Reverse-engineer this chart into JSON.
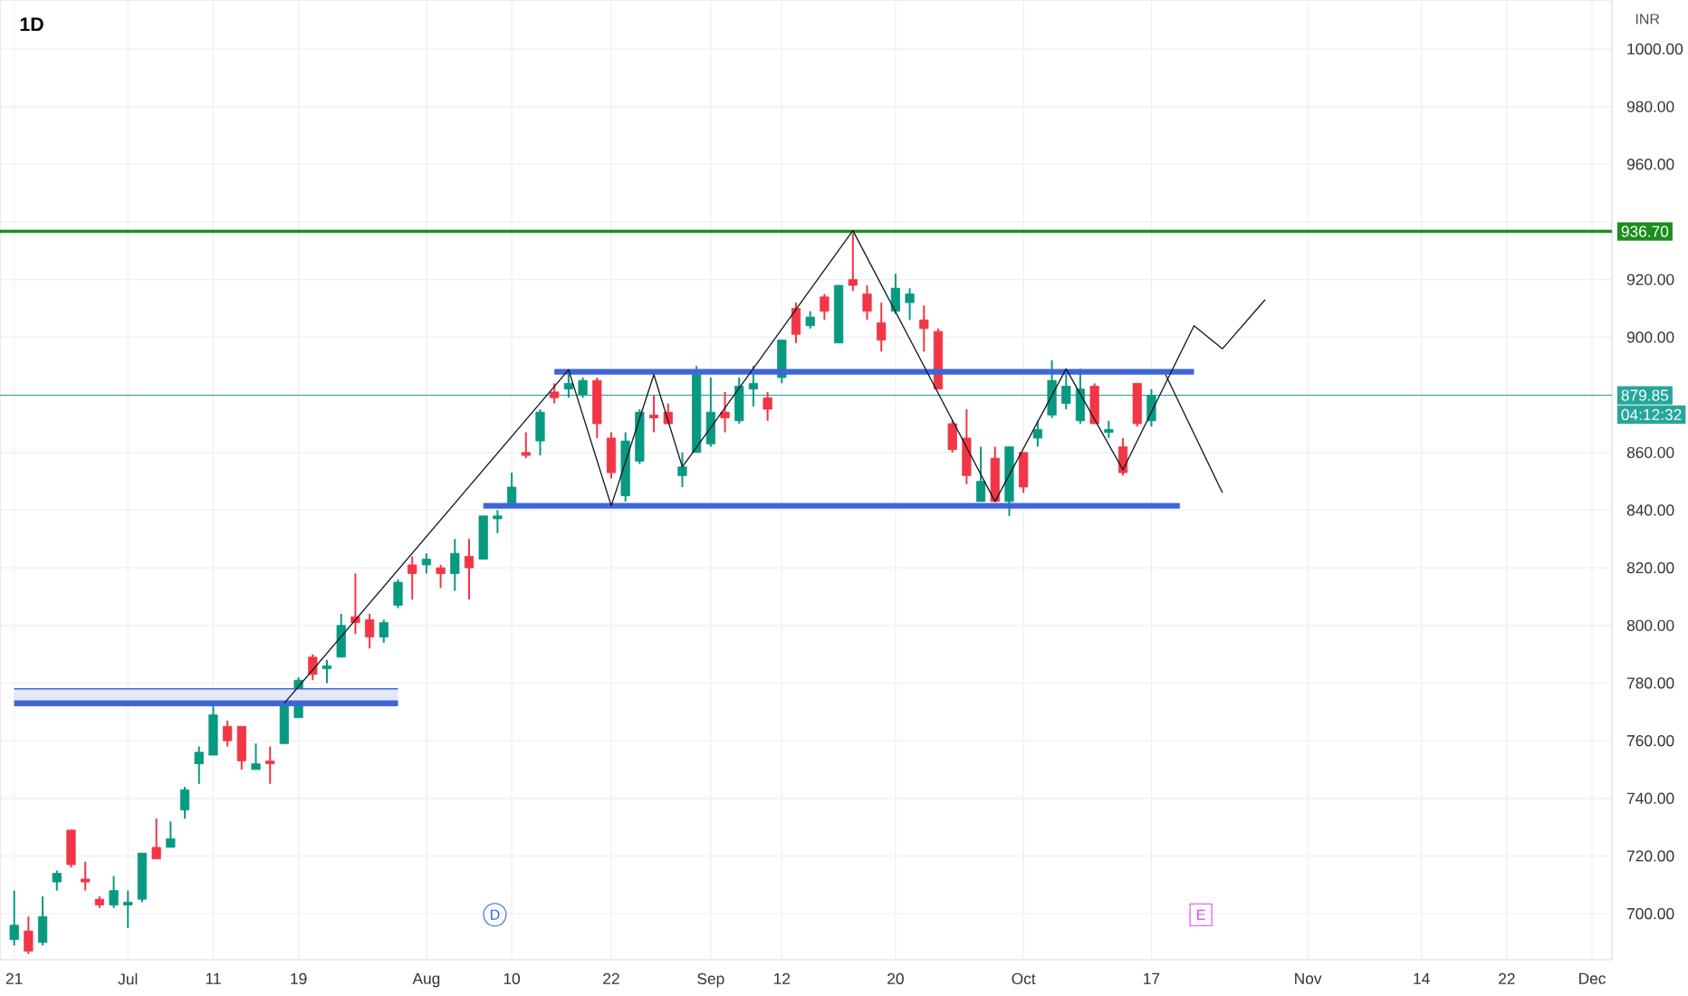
{
  "chart_data": {
    "type": "candlestick",
    "title": "1D",
    "ylabel": "INR",
    "categories": [
      "21",
      null,
      null,
      null,
      null,
      null,
      null,
      null,
      "Jul",
      null,
      null,
      null,
      null,
      null,
      "11",
      null,
      null,
      null,
      null,
      null,
      "19",
      null,
      null,
      null,
      null,
      null,
      null,
      null,
      null,
      "Aug",
      null,
      null,
      null,
      null,
      null,
      "10",
      null,
      null,
      null,
      null,
      null,
      null,
      "22",
      null,
      null,
      null,
      null,
      null,
      null,
      "Sep",
      null,
      null,
      null,
      null,
      "12",
      null,
      null,
      null,
      null,
      null,
      null,
      null,
      "20",
      null,
      null,
      null,
      null,
      null,
      null,
      null,
      null,
      "Oct",
      null,
      null,
      null,
      null,
      null,
      null,
      null,
      null,
      "17",
      null,
      null,
      null,
      null,
      null,
      null,
      null,
      null,
      null,
      null,
      "Nov",
      null,
      null,
      null,
      null,
      null,
      null,
      null,
      "14",
      null,
      null,
      null,
      null,
      null,
      "22",
      null,
      null,
      null,
      null,
      null,
      "Dec"
    ],
    "ohlc": [
      [
        691,
        708,
        689,
        696
      ],
      [
        694,
        699,
        686,
        687
      ],
      [
        690,
        706,
        689,
        699
      ],
      [
        711,
        715,
        708,
        714
      ],
      [
        729,
        729,
        716,
        717
      ],
      [
        712,
        718,
        708,
        711
      ],
      [
        705,
        706,
        702,
        703
      ],
      [
        703,
        713,
        702,
        708
      ],
      [
        703,
        708,
        695,
        704
      ],
      [
        705,
        721,
        704,
        721
      ],
      [
        723,
        733,
        719,
        719
      ],
      [
        723,
        732,
        723,
        726
      ],
      [
        736,
        744,
        733,
        743
      ],
      [
        752,
        758,
        745,
        756
      ],
      [
        755,
        772,
        755,
        769
      ],
      [
        765,
        767,
        758,
        760
      ],
      [
        765,
        765,
        750,
        753
      ],
      [
        750,
        759,
        750,
        752
      ],
      [
        753,
        758,
        745,
        752
      ],
      [
        759,
        773,
        759,
        772
      ],
      [
        768,
        782,
        768,
        781
      ],
      [
        789,
        790,
        781,
        783
      ],
      [
        785,
        788,
        780,
        786
      ],
      [
        789,
        804,
        789,
        800
      ],
      [
        803,
        818,
        797,
        801
      ],
      [
        802,
        804,
        792,
        796
      ],
      [
        796,
        802,
        794,
        801
      ],
      [
        807,
        816,
        806,
        815
      ],
      [
        821,
        824,
        809,
        818
      ],
      [
        821,
        825,
        818,
        823
      ],
      [
        820,
        821,
        813,
        818
      ],
      [
        818,
        830,
        812,
        825
      ],
      [
        824,
        830,
        809,
        820
      ],
      [
        823,
        838,
        823,
        838
      ],
      [
        837,
        840,
        832,
        838
      ],
      [
        842,
        853,
        842,
        848
      ],
      [
        860,
        867,
        858,
        859
      ],
      [
        864,
        875,
        859,
        874
      ],
      [
        881,
        884,
        877,
        879
      ],
      [
        882,
        887,
        879,
        884
      ],
      [
        880,
        886,
        879,
        885
      ],
      [
        885,
        886,
        865,
        870
      ],
      [
        865,
        867,
        851,
        853
      ],
      [
        845,
        867,
        843,
        864
      ],
      [
        857,
        875,
        856,
        874
      ],
      [
        873,
        880,
        867,
        872
      ],
      [
        874,
        877,
        870,
        870
      ],
      [
        852,
        860,
        848,
        855
      ],
      [
        860,
        890,
        860,
        887
      ],
      [
        863,
        886,
        862,
        874
      ],
      [
        874,
        881,
        867,
        872
      ],
      [
        871,
        886,
        870,
        883
      ],
      [
        882,
        890,
        876,
        884
      ],
      [
        879,
        881,
        871,
        875
      ],
      [
        886,
        899,
        884,
        899
      ],
      [
        910,
        912,
        898,
        901
      ],
      [
        904,
        909,
        903,
        907
      ],
      [
        914,
        915,
        906,
        909
      ],
      [
        898,
        918,
        898,
        918
      ],
      [
        920,
        936,
        916,
        918
      ],
      [
        915,
        918,
        906,
        909
      ],
      [
        905,
        912,
        895,
        899
      ],
      [
        909,
        922,
        908,
        917
      ],
      [
        912,
        917,
        906,
        915
      ],
      [
        906,
        911,
        895,
        903
      ],
      [
        902,
        903,
        882,
        882
      ],
      [
        870,
        871,
        860,
        861
      ],
      [
        865,
        875,
        849,
        852
      ],
      [
        843,
        862,
        843,
        850
      ],
      [
        858,
        862,
        843,
        843
      ],
      [
        843,
        862,
        838,
        862
      ],
      [
        860,
        860,
        846,
        848
      ],
      [
        865,
        871,
        862,
        868
      ],
      [
        873,
        892,
        872,
        885
      ],
      [
        877,
        887,
        875,
        883
      ],
      [
        871,
        889,
        870,
        882
      ],
      [
        883,
        884,
        870,
        870
      ],
      [
        867,
        871,
        865,
        868
      ],
      [
        862,
        865,
        852,
        853
      ],
      [
        884,
        884,
        869,
        870
      ],
      [
        871,
        882,
        869,
        879.85
      ],
      null,
      null,
      null,
      null,
      null,
      null,
      null,
      null,
      null,
      null,
      null,
      null,
      null,
      null,
      null,
      null,
      null,
      null,
      null,
      null,
      null,
      null,
      null,
      null,
      null,
      null,
      null,
      null,
      null,
      null,
      null
    ],
    "colors": [
      "#089981",
      "#f23645",
      "#089981",
      "#089981",
      "#f23645",
      "#f23645",
      "#f23645",
      "#089981",
      "#089981",
      "#089981",
      "#f23645",
      "#089981",
      "#089981",
      "#089981",
      "#089981",
      "#f23645",
      "#f23645",
      "#089981",
      "#f23645",
      "#089981",
      "#089981",
      "#f23645",
      "#089981",
      "#089981",
      "#f23645",
      "#f23645",
      "#089981",
      "#089981",
      "#f23645",
      "#089981",
      "#f23645",
      "#089981",
      "#f23645",
      "#089981",
      "#089981",
      "#089981",
      "#f23645",
      "#089981",
      "#f23645",
      "#089981",
      "#089981",
      "#f23645",
      "#f23645",
      "#089981",
      "#089981",
      "#f23645",
      "#f23645",
      "#089981",
      "#089981",
      "#089981",
      "#f23645",
      "#089981",
      "#089981",
      "#f23645",
      "#089981",
      "#f23645",
      "#089981",
      "#f23645",
      "#089981",
      "#f23645",
      "#f23645",
      "#f23645",
      "#089981",
      "#089981",
      "#f23645",
      "#f23645",
      "#f23645",
      "#f23645",
      "#089981",
      "#f23645",
      "#089981",
      "#f23645",
      "#089981",
      "#089981",
      "#089981",
      "#089981",
      "#f23645",
      "#089981",
      "#f23645",
      "#f23645",
      "#089981",
      null,
      null,
      null,
      null,
      null,
      null,
      null,
      null,
      null,
      null,
      null,
      null,
      null,
      null,
      null,
      null,
      null,
      null,
      null,
      null,
      null,
      null,
      null,
      null,
      null,
      null,
      null,
      null,
      null,
      null,
      null
    ],
    "series": [
      {
        "type": "line",
        "color": "#3f66d6",
        "values": [
          null,
          null,
          null,
          null,
          null,
          null,
          null,
          null,
          null,
          null,
          null,
          null,
          null,
          null,
          null,
          null,
          null,
          null,
          null,
          null,
          null,
          null,
          null,
          null,
          null,
          null,
          null,
          null,
          null,
          null,
          null,
          null,
          null,
          null,
          null,
          null,
          null,
          null,
          888,
          null,
          null,
          null,
          null,
          null,
          null,
          null,
          null,
          null,
          null,
          null,
          null,
          null,
          null,
          null,
          null,
          null,
          null,
          null,
          null,
          null,
          null,
          null,
          null,
          null,
          null,
          null,
          null,
          null,
          null,
          null,
          null,
          null,
          null,
          null,
          null,
          null,
          null,
          null,
          null,
          null,
          null,
          null,
          null,
          888,
          null,
          null,
          null,
          null,
          null,
          null,
          null,
          null,
          null,
          null,
          null,
          null,
          null,
          null,
          null,
          null,
          null,
          null,
          null,
          null,
          null,
          null,
          null,
          null,
          null,
          null,
          null,
          null
        ]
      },
      {
        "type": "line",
        "color": "#3f66d6",
        "values": [
          null,
          null,
          null,
          null,
          null,
          null,
          null,
          null,
          null,
          null,
          null,
          null,
          null,
          null,
          null,
          null,
          null,
          null,
          null,
          null,
          null,
          null,
          null,
          null,
          null,
          null,
          null,
          null,
          null,
          null,
          null,
          null,
          null,
          841.5,
          null,
          null,
          null,
          null,
          null,
          null,
          null,
          null,
          null,
          null,
          null,
          null,
          null,
          null,
          null,
          null,
          null,
          null,
          null,
          null,
          null,
          null,
          null,
          null,
          null,
          null,
          null,
          null,
          null,
          null,
          null,
          null,
          null,
          null,
          null,
          null,
          null,
          null,
          null,
          null,
          null,
          null,
          null,
          null,
          null,
          null,
          null,
          null,
          841.5,
          null,
          null,
          null,
          null,
          null,
          null,
          null,
          null,
          null,
          null,
          null,
          null,
          null,
          null,
          null,
          null,
          null,
          null,
          null,
          null,
          null,
          null,
          null,
          null,
          null,
          null,
          null,
          null,
          null
        ]
      },
      {
        "type": "line",
        "color": "#3f66d6",
        "values": [
          778,
          null,
          null,
          null,
          null,
          null,
          null,
          null,
          null,
          null,
          null,
          null,
          null,
          null,
          null,
          null,
          null,
          null,
          null,
          null,
          null,
          null,
          null,
          null,
          null,
          null,
          null,
          778,
          null,
          null,
          null,
          null,
          null,
          null,
          null,
          null,
          null,
          null,
          null,
          null,
          null,
          null,
          null,
          null,
          null,
          null,
          null,
          null,
          null,
          null,
          null,
          null,
          null,
          null,
          null,
          null,
          null,
          null,
          null,
          null,
          null,
          null,
          null,
          null,
          null,
          null,
          null,
          null,
          null,
          null,
          null,
          null,
          null,
          null,
          null,
          null,
          null,
          null,
          null,
          null,
          null,
          null,
          null,
          null,
          null,
          null,
          null,
          null,
          null,
          null,
          null,
          null,
          null,
          null,
          null,
          null,
          null,
          null,
          null,
          null,
          null,
          null,
          null,
          null,
          null,
          null,
          null,
          null,
          null,
          null,
          null,
          null
        ],
        "lower": [
          773,
          null,
          null,
          null,
          null,
          null,
          null,
          null,
          null,
          null,
          null,
          null,
          null,
          null,
          null,
          null,
          null,
          null,
          null,
          null,
          null,
          null,
          null,
          null,
          null,
          null,
          null,
          773,
          null,
          null,
          null,
          null,
          null,
          null,
          null,
          null,
          null,
          null,
          null,
          null,
          null,
          null,
          null,
          null,
          null,
          null,
          null,
          null,
          null,
          null,
          null,
          null,
          null,
          null,
          null,
          null,
          null,
          null,
          null,
          null,
          null,
          null,
          null,
          null,
          null,
          null,
          null,
          null,
          null,
          null,
          null,
          null,
          null,
          null,
          null,
          null,
          null,
          null,
          null,
          null,
          null,
          null,
          null,
          null,
          null,
          null,
          null,
          null,
          null,
          null,
          null,
          null,
          null,
          null,
          null,
          null,
          null,
          null,
          null,
          null,
          null,
          null,
          null,
          null,
          null,
          null,
          null,
          null,
          null,
          null,
          null,
          null
        ],
        "upper": [
          778,
          null,
          null,
          null,
          null,
          null,
          null,
          null,
          null,
          null,
          null,
          null,
          null,
          null,
          null,
          null,
          null,
          null,
          null,
          null,
          null,
          null,
          null,
          null,
          null,
          null,
          null,
          778,
          null,
          null,
          null,
          null,
          null,
          null,
          null,
          null,
          null,
          null,
          null,
          null,
          null,
          null,
          null,
          null,
          null,
          null,
          null,
          null,
          null,
          null,
          null,
          null,
          null,
          null,
          null,
          null,
          null,
          null,
          null,
          null,
          null,
          null,
          null,
          null,
          null,
          null,
          null,
          null,
          null,
          null,
          null,
          null,
          null,
          null,
          null,
          null,
          null,
          null,
          null,
          null,
          null,
          null,
          null,
          null,
          null,
          null,
          null,
          null,
          null,
          null,
          null,
          null,
          null,
          null,
          null,
          null,
          null,
          null,
          null,
          null,
          null,
          null,
          null,
          null,
          null,
          null,
          null,
          null,
          null,
          null,
          null,
          null
        ]
      },
      {
        "type": "line",
        "color": "#3f66d6",
        "values": [
          773,
          null,
          null,
          null,
          null,
          null,
          null,
          null,
          null,
          null,
          null,
          null,
          null,
          null,
          null,
          null,
          null,
          null,
          null,
          null,
          null,
          null,
          null,
          null,
          null,
          null,
          null,
          773,
          null,
          null,
          null,
          null,
          null,
          null,
          null,
          null,
          null,
          null,
          null,
          null,
          null,
          null,
          null,
          null,
          null,
          null,
          null,
          null,
          null,
          null,
          null,
          null,
          null,
          null,
          null,
          null,
          null,
          null,
          null,
          null,
          null,
          null,
          null,
          null,
          null,
          null,
          null,
          null,
          null,
          null,
          null,
          null,
          null,
          null,
          null,
          null,
          null,
          null,
          null,
          null,
          null,
          null,
          null,
          null,
          null,
          null,
          null,
          null,
          null,
          null,
          null,
          null,
          null,
          null,
          null,
          null,
          null,
          null,
          null,
          null,
          null,
          null,
          null,
          null,
          null,
          null,
          null,
          null,
          null,
          null,
          null,
          null
        ]
      },
      {
        "type": "line",
        "color": "#131722",
        "values": [
          null,
          null,
          null,
          null,
          null,
          null,
          null,
          null,
          null,
          null,
          null,
          null,
          null,
          null,
          null,
          null,
          null,
          null,
          null,
          773,
          null,
          null,
          null,
          null,
          null,
          null,
          null,
          null,
          null,
          null,
          null,
          null,
          null,
          null,
          null,
          null,
          null,
          null,
          null,
          888.7,
          null,
          null,
          841.5,
          null,
          null,
          887,
          null,
          855,
          null,
          null,
          null,
          null,
          null,
          null,
          null,
          null,
          null,
          null,
          null,
          937,
          null,
          null,
          null,
          null,
          null,
          null,
          null,
          null,
          null,
          843,
          null,
          null,
          null,
          null,
          889,
          null,
          null,
          null,
          854,
          null,
          null,
          null,
          null,
          904,
          null,
          896,
          null,
          null,
          913,
          null,
          null,
          null,
          null,
          null,
          null,
          null,
          null,
          null,
          null,
          null,
          null,
          null,
          null,
          null,
          null,
          null,
          null,
          null,
          null,
          null,
          null,
          null
        ]
      },
      {
        "type": "line",
        "color": "#131722",
        "values": [
          null,
          null,
          null,
          null,
          null,
          null,
          null,
          null,
          null,
          null,
          null,
          null,
          null,
          null,
          null,
          null,
          null,
          null,
          null,
          null,
          null,
          null,
          null,
          null,
          null,
          null,
          null,
          null,
          null,
          null,
          null,
          null,
          null,
          null,
          null,
          null,
          null,
          null,
          null,
          null,
          null,
          null,
          null,
          null,
          null,
          null,
          null,
          null,
          null,
          null,
          null,
          null,
          null,
          null,
          null,
          null,
          null,
          null,
          null,
          null,
          null,
          null,
          null,
          null,
          null,
          null,
          null,
          null,
          null,
          null,
          null,
          null,
          null,
          null,
          null,
          null,
          null,
          null,
          null,
          null,
          null,
          887,
          null,
          null,
          null,
          846,
          null,
          null,
          null,
          null,
          null,
          null,
          null,
          null,
          null,
          null,
          null,
          null,
          null,
          null,
          null,
          null,
          null,
          null,
          null,
          null,
          null,
          null,
          null,
          null,
          null,
          null
        ]
      }
    ],
    "ref_lines": [
      {
        "axis": "y",
        "value": 936.7,
        "label": "936.70",
        "color": "#1e8c1e"
      },
      {
        "axis": "y",
        "value": 879.85,
        "label": "879.85",
        "color": "#26a69a"
      }
    ],
    "annotations": [
      "04:12:32",
      "D",
      "E"
    ],
    "ylim": [
      684,
      1017
    ],
    "yticks": [
      {
        "value": 700,
        "label": "700.00"
      },
      {
        "value": 720,
        "label": "720.00"
      },
      {
        "value": 740,
        "label": "740.00"
      },
      {
        "value": 760,
        "label": "760.00"
      },
      {
        "value": 780,
        "label": "780.00"
      },
      {
        "value": 800,
        "label": "800.00"
      },
      {
        "value": 820,
        "label": "820.00"
      },
      {
        "value": 840,
        "label": "840.00"
      },
      {
        "value": 860,
        "label": "860.00"
      },
      {
        "value": 880,
        "label": null
      },
      {
        "value": 900,
        "label": "900.00"
      },
      {
        "value": 920,
        "label": "920.00"
      },
      {
        "value": 940,
        "label": null
      },
      {
        "value": 960,
        "label": "960.00"
      },
      {
        "value": 980,
        "label": "980.00"
      },
      {
        "value": 1000,
        "label": "1000.00"
      }
    ],
    "grid": true
  }
}
